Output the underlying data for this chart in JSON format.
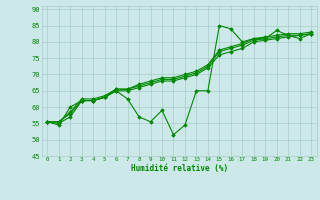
{
  "xlabel": "Humidité relative (%)",
  "bg_color": "#cce8e8",
  "grid_color": "#aacccc",
  "line_color": "#008800",
  "xlim": [
    -0.5,
    23.5
  ],
  "ylim": [
    45,
    91
  ],
  "yticks": [
    45,
    50,
    55,
    60,
    65,
    70,
    75,
    80,
    85,
    90
  ],
  "xticks": [
    0,
    1,
    2,
    3,
    4,
    5,
    6,
    7,
    8,
    9,
    10,
    11,
    12,
    13,
    14,
    15,
    16,
    17,
    18,
    19,
    20,
    21,
    22,
    23
  ],
  "series": [
    [
      55.5,
      54.5,
      60,
      62,
      62,
      63,
      65,
      62.5,
      57,
      55.5,
      59,
      51.5,
      54.5,
      65,
      65,
      85,
      84,
      80,
      81,
      81,
      83.5,
      82,
      81,
      82.5
    ],
    [
      55.5,
      55,
      57,
      62,
      62,
      63,
      65,
      65,
      66,
      67,
      68,
      68,
      69,
      70,
      72,
      76,
      77,
      78,
      80,
      80.5,
      81,
      81.5,
      82,
      82.5
    ],
    [
      55.5,
      55.5,
      58,
      62,
      62,
      63,
      65.5,
      65.5,
      66.5,
      67.5,
      68.5,
      68.5,
      69.5,
      70.5,
      72.5,
      77,
      78,
      79,
      80.5,
      81,
      81.5,
      82,
      82,
      82.5
    ],
    [
      55.5,
      55.5,
      58.5,
      62.5,
      62.5,
      63.5,
      65.5,
      65.5,
      67,
      68,
      69,
      69,
      70,
      71,
      73,
      77.5,
      78.5,
      79.5,
      81,
      81.5,
      82,
      82.5,
      82.5,
      83
    ]
  ],
  "marker": "D",
  "markersize": 1.8,
  "linewidth": 0.8
}
